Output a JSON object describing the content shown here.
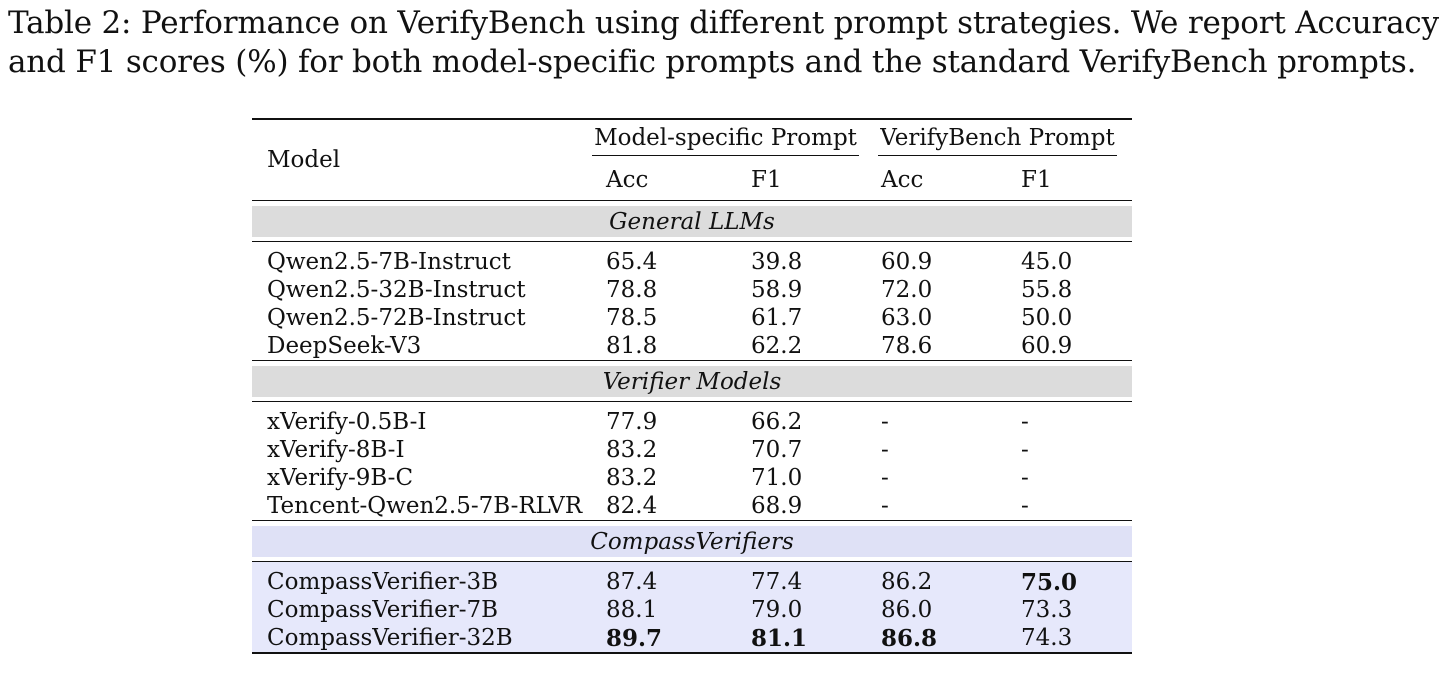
{
  "caption": {
    "line1": "Table 2: Performance on VerifyBench using different prompt strategies. We report Accuracy",
    "line2": "and F1 scores (%) for both model-specific prompts and the standard VerifyBench prompts."
  },
  "table": {
    "model_header": "Model",
    "group_headers": [
      "Model-specific Prompt",
      "VerifyBench Prompt"
    ],
    "sub_headers": [
      "Acc",
      "F1",
      "Acc",
      "F1"
    ],
    "sections": [
      {
        "title": "General LLMs",
        "rows": [
          {
            "model": "Qwen2.5-7B-Instruct",
            "ms_acc": "65.4",
            "ms_f1": "39.8",
            "vb_acc": "60.9",
            "vb_f1": "45.0"
          },
          {
            "model": "Qwen2.5-32B-Instruct",
            "ms_acc": "78.8",
            "ms_f1": "58.9",
            "vb_acc": "72.0",
            "vb_f1": "55.8"
          },
          {
            "model": "Qwen2.5-72B-Instruct",
            "ms_acc": "78.5",
            "ms_f1": "61.7",
            "vb_acc": "63.0",
            "vb_f1": "50.0"
          },
          {
            "model": "DeepSeek-V3",
            "ms_acc": "81.8",
            "ms_f1": "62.2",
            "vb_acc": "78.6",
            "vb_f1": "60.9"
          }
        ]
      },
      {
        "title": "Verifier Models",
        "rows": [
          {
            "model": "xVerify-0.5B-I",
            "ms_acc": "77.9",
            "ms_f1": "66.2",
            "vb_acc": "-",
            "vb_f1": "-"
          },
          {
            "model": "xVerify-8B-I",
            "ms_acc": "83.2",
            "ms_f1": "70.7",
            "vb_acc": "-",
            "vb_f1": "-"
          },
          {
            "model": "xVerify-9B-C",
            "ms_acc": "83.2",
            "ms_f1": "71.0",
            "vb_acc": "-",
            "vb_f1": "-"
          },
          {
            "model": "Tencent-Qwen2.5-7B-RLVR",
            "ms_acc": "82.4",
            "ms_f1": "68.9",
            "vb_acc": "-",
            "vb_f1": "-"
          }
        ]
      },
      {
        "title": "CompassVerifiers",
        "rows": [
          {
            "model": "CompassVerifier-3B",
            "ms_acc": "87.4",
            "ms_f1": "77.4",
            "vb_acc": "86.2",
            "vb_f1": "75.0"
          },
          {
            "model": "CompassVerifier-7B",
            "ms_acc": "88.1",
            "ms_f1": "79.0",
            "vb_acc": "86.0",
            "vb_f1": "73.3"
          },
          {
            "model": "CompassVerifier-32B",
            "ms_acc": "89.7",
            "ms_f1": "81.1",
            "vb_acc": "86.8",
            "vb_f1": "74.3"
          }
        ]
      }
    ]
  }
}
